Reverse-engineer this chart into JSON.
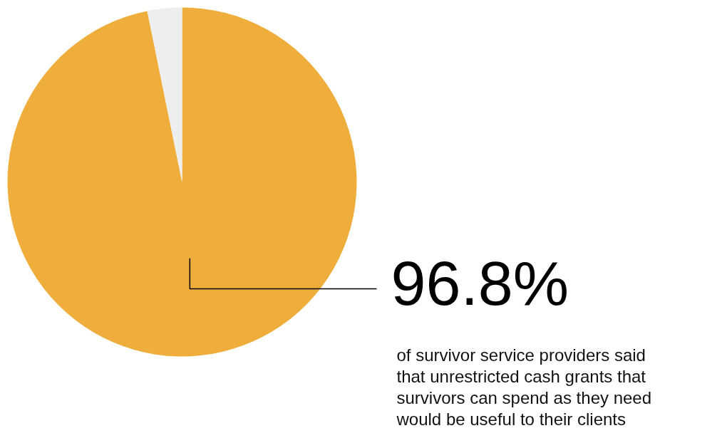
{
  "chart_data": {
    "type": "pie",
    "categories": [
      null,
      null
    ],
    "values": [
      96.8,
      3.2
    ],
    "colors": [
      "#efae3c",
      "#eeeeee"
    ],
    "value_labels": [
      "96.8%",
      null
    ],
    "annotations": [
      "of survivor service providers said that unrestricted cash grants that survivors can spend as they need would be useful to their clients"
    ]
  }
}
